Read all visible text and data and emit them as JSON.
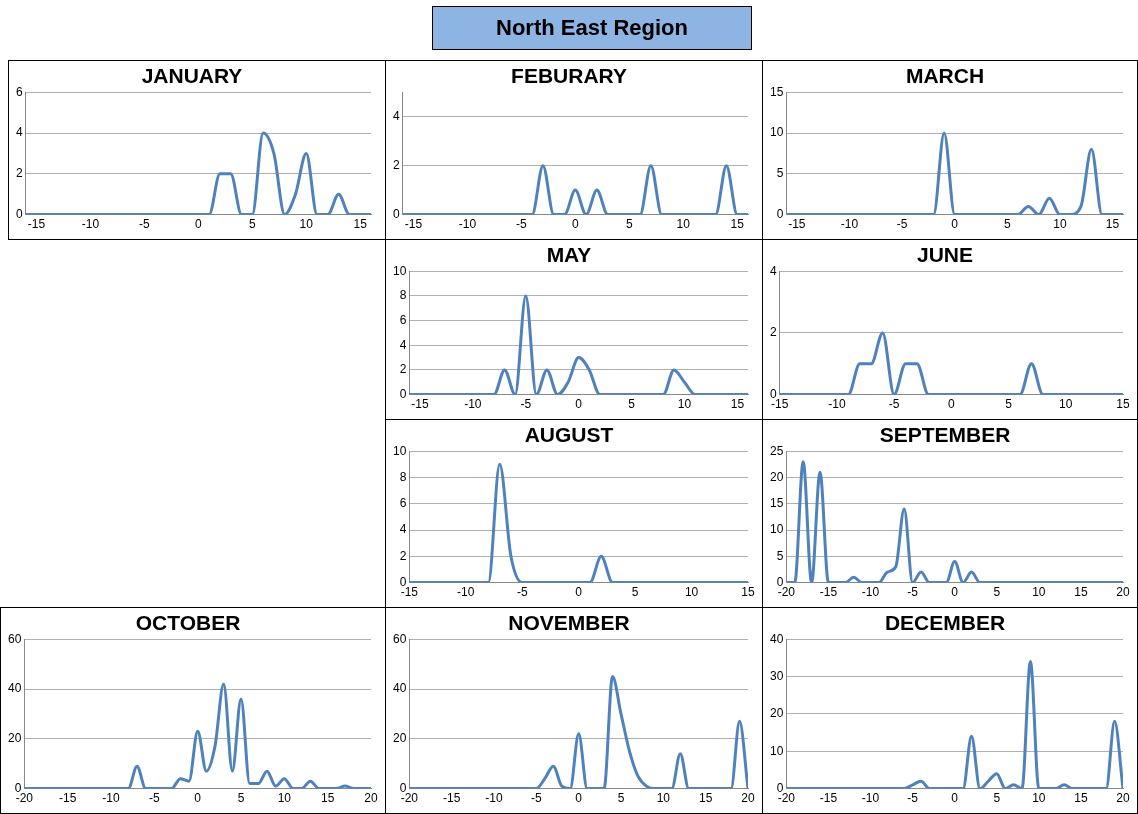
{
  "chart_data": [
    {
      "type": "other",
      "title": "North East Region"
    },
    {
      "type": "line",
      "title": "JANUARY",
      "x": [
        -16,
        0,
        1,
        2,
        3,
        4,
        5,
        6,
        7,
        8,
        9,
        10,
        11,
        12,
        13,
        14,
        16
      ],
      "series": [
        {
          "color": "#4f81bd",
          "values": [
            0,
            0,
            0,
            2,
            2,
            0,
            0,
            4,
            3,
            0,
            1,
            3,
            0,
            0,
            1,
            0,
            0
          ]
        }
      ],
      "xlim": [
        -16,
        16
      ],
      "xticks": [
        -15,
        -10,
        -5,
        0,
        5,
        10,
        15
      ],
      "ylim": [
        0,
        6
      ],
      "yticks": [
        0,
        2,
        4,
        6
      ],
      "grid": "y",
      "marker": "none"
    },
    {
      "type": "line",
      "title": "FEBURARY",
      "x": [
        -16,
        -4,
        -3,
        -2,
        -1,
        0,
        1,
        2,
        3,
        6,
        7,
        8,
        13,
        14,
        15,
        16
      ],
      "series": [
        {
          "color": "#4f81bd",
          "values": [
            0,
            0,
            2,
            0,
            0,
            1,
            0,
            1,
            0,
            0,
            2,
            0,
            0,
            2,
            0,
            0
          ]
        }
      ],
      "xlim": [
        -16,
        16
      ],
      "xticks": [
        -15,
        -10,
        -5,
        0,
        5,
        10,
        15
      ],
      "ylim": [
        0,
        5
      ],
      "yticks": [
        0,
        2,
        4
      ],
      "grid": "y",
      "marker": "none"
    },
    {
      "type": "line",
      "title": "MARCH",
      "x": [
        -16,
        -2,
        -1,
        0,
        6,
        7,
        8,
        9,
        10,
        11,
        12,
        13,
        14,
        16
      ],
      "series": [
        {
          "color": "#4f81bd",
          "values": [
            0,
            0,
            10,
            0,
            0,
            1,
            0,
            2,
            0,
            0,
            1,
            8,
            0,
            0
          ]
        }
      ],
      "xlim": [
        -16,
        16
      ],
      "xticks": [
        -15,
        -10,
        -5,
        0,
        5,
        10,
        15
      ],
      "ylim": [
        0,
        15
      ],
      "yticks": [
        0,
        5,
        10,
        15
      ],
      "grid": "y",
      "marker": "none"
    },
    {
      "type": "line",
      "title": "MAY",
      "x": [
        -16,
        -8,
        -7,
        -6,
        -5,
        -4,
        -3,
        -2,
        -1,
        0,
        1,
        2,
        8,
        9,
        10,
        11,
        16
      ],
      "series": [
        {
          "color": "#4f81bd",
          "values": [
            0,
            0,
            2,
            0,
            8,
            0,
            2,
            0,
            1,
            3,
            2,
            0,
            0,
            2,
            1,
            0,
            0
          ]
        }
      ],
      "xlim": [
        -16,
        16
      ],
      "xticks": [
        -15,
        -10,
        -5,
        0,
        5,
        10,
        15
      ],
      "ylim": [
        0,
        10
      ],
      "yticks": [
        0,
        2,
        4,
        6,
        8,
        10
      ],
      "grid": "y",
      "marker": "none"
    },
    {
      "type": "line",
      "title": "JUNE",
      "x": [
        -15,
        -9,
        -8,
        -7,
        -6,
        -5,
        -4,
        -3,
        -2,
        6,
        7,
        8,
        15
      ],
      "series": [
        {
          "color": "#4f81bd",
          "values": [
            0,
            0,
            1,
            1,
            2,
            0,
            1,
            1,
            0,
            0,
            1,
            0,
            0
          ]
        }
      ],
      "xlim": [
        -15,
        15
      ],
      "xticks": [
        -15,
        -10,
        -5,
        0,
        5,
        10,
        15
      ],
      "ylim": [
        0,
        4
      ],
      "yticks": [
        0,
        2,
        4
      ],
      "grid": "y",
      "marker": "none"
    },
    {
      "type": "line",
      "title": "AUGUST",
      "x": [
        -15,
        -8,
        -7,
        -6,
        -5,
        1,
        2,
        3,
        15
      ],
      "series": [
        {
          "color": "#4f81bd",
          "values": [
            0,
            0,
            9,
            2,
            0,
            0,
            2,
            0,
            0
          ]
        }
      ],
      "xlim": [
        -15,
        15
      ],
      "xticks": [
        -15,
        -10,
        -5,
        0,
        5,
        10,
        15
      ],
      "ylim": [
        0,
        10
      ],
      "yticks": [
        0,
        2,
        4,
        6,
        8,
        10
      ],
      "grid": "y",
      "marker": "none"
    },
    {
      "type": "line",
      "title": "SEPTEMBER",
      "x": [
        -20,
        -19,
        -18,
        -17,
        -16,
        -15,
        -13,
        -12,
        -11,
        -9,
        -8,
        -7,
        -6,
        -5,
        -4,
        -3,
        -1,
        0,
        1,
        2,
        3,
        20
      ],
      "series": [
        {
          "color": "#4f81bd",
          "values": [
            0,
            0,
            23,
            0,
            21,
            0,
            0,
            1,
            0,
            0,
            2,
            3,
            14,
            0,
            2,
            0,
            0,
            4,
            0,
            2,
            0,
            0
          ]
        }
      ],
      "xlim": [
        -20,
        20
      ],
      "xticks": [
        -20,
        -15,
        -10,
        -5,
        0,
        5,
        10,
        15,
        20
      ],
      "ylim": [
        0,
        25
      ],
      "yticks": [
        0,
        5,
        10,
        15,
        20,
        25
      ],
      "grid": "y",
      "marker": "none"
    },
    {
      "type": "line",
      "title": "OCTOBER",
      "x": [
        -20,
        -8,
        -7,
        -6,
        -3,
        -2,
        -1,
        0,
        1,
        2,
        3,
        4,
        5,
        6,
        7,
        8,
        9,
        10,
        11,
        12,
        13,
        14,
        16,
        17,
        18,
        20
      ],
      "series": [
        {
          "color": "#4f81bd",
          "values": [
            0,
            0,
            9,
            0,
            0,
            4,
            3,
            23,
            7,
            17,
            42,
            7,
            36,
            2,
            2,
            7,
            1,
            4,
            0,
            0,
            3,
            0,
            0,
            1,
            0,
            0
          ]
        }
      ],
      "xlim": [
        -20,
        20
      ],
      "xticks": [
        -20,
        -15,
        -10,
        -5,
        0,
        5,
        10,
        15,
        20
      ],
      "ylim": [
        0,
        60
      ],
      "yticks": [
        0,
        20,
        40,
        60
      ],
      "grid": "y",
      "marker": "none"
    },
    {
      "type": "line",
      "title": "NOVEMBER",
      "x": [
        -20,
        -5,
        -4,
        -3,
        -2,
        -1,
        0,
        1,
        3,
        4,
        5,
        6,
        7,
        8,
        9,
        11,
        12,
        13,
        18,
        19,
        20
      ],
      "series": [
        {
          "color": "#4f81bd",
          "values": [
            0,
            0,
            4,
            9,
            1,
            0,
            22,
            0,
            0,
            45,
            30,
            15,
            5,
            1,
            0,
            0,
            14,
            0,
            0,
            27,
            0
          ]
        }
      ],
      "xlim": [
        -20,
        20
      ],
      "xticks": [
        -20,
        -15,
        -10,
        -5,
        0,
        5,
        10,
        15,
        20
      ],
      "ylim": [
        0,
        60
      ],
      "yticks": [
        0,
        20,
        40,
        60
      ],
      "grid": "y",
      "marker": "none"
    },
    {
      "type": "line",
      "title": "DECEMBER",
      "x": [
        -20,
        -6,
        -5,
        -4,
        -3,
        1,
        2,
        3,
        4,
        5,
        6,
        7,
        8,
        9,
        10,
        12,
        13,
        14,
        18,
        19,
        20
      ],
      "series": [
        {
          "color": "#4f81bd",
          "values": [
            0,
            0,
            1,
            2,
            0,
            0,
            14,
            0,
            2,
            4,
            0,
            1,
            0,
            34,
            0,
            0,
            1,
            0,
            0,
            18,
            0
          ]
        }
      ],
      "xlim": [
        -20,
        20
      ],
      "xticks": [
        -20,
        -15,
        -10,
        -5,
        0,
        5,
        10,
        15,
        20
      ],
      "ylim": [
        0,
        40
      ],
      "yticks": [
        0,
        10,
        20,
        30,
        40
      ],
      "grid": "y",
      "marker": "none"
    }
  ]
}
